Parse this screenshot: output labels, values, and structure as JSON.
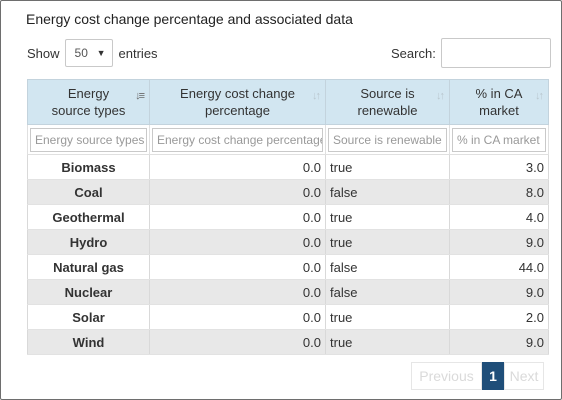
{
  "title": "Energy cost change percentage and associated data",
  "length": {
    "show_label": "Show",
    "value": "50",
    "entries_label": "entries"
  },
  "search": {
    "label": "Search:",
    "value": ""
  },
  "columns": [
    {
      "label": "Energy source types",
      "filter_placeholder": "Energy source types"
    },
    {
      "label": "Energy cost change percentage",
      "filter_placeholder": "Energy cost change percentage"
    },
    {
      "label": "Source is renewable",
      "filter_placeholder": "Source is renewable"
    },
    {
      "label": "% in CA market",
      "filter_placeholder": "% in CA market"
    }
  ],
  "rows": [
    {
      "name": "Biomass",
      "cost_change": "0.0",
      "renewable": "true",
      "ca_market": "3.0"
    },
    {
      "name": "Coal",
      "cost_change": "0.0",
      "renewable": "false",
      "ca_market": "8.0"
    },
    {
      "name": "Geothermal",
      "cost_change": "0.0",
      "renewable": "true",
      "ca_market": "4.0"
    },
    {
      "name": "Hydro",
      "cost_change": "0.0",
      "renewable": "true",
      "ca_market": "9.0"
    },
    {
      "name": "Natural gas",
      "cost_change": "0.0",
      "renewable": "false",
      "ca_market": "44.0"
    },
    {
      "name": "Nuclear",
      "cost_change": "0.0",
      "renewable": "false",
      "ca_market": "9.0"
    },
    {
      "name": "Solar",
      "cost_change": "0.0",
      "renewable": "true",
      "ca_market": "2.0"
    },
    {
      "name": "Wind",
      "cost_change": "0.0",
      "renewable": "true",
      "ca_market": "9.0"
    }
  ],
  "pagination": {
    "previous": "Previous",
    "current": "1",
    "next": "Next"
  },
  "colors": {
    "header_bg": "#d2e6f1",
    "stripe_bg": "#e8e8e8",
    "current_page_bg": "#1f4e79"
  }
}
